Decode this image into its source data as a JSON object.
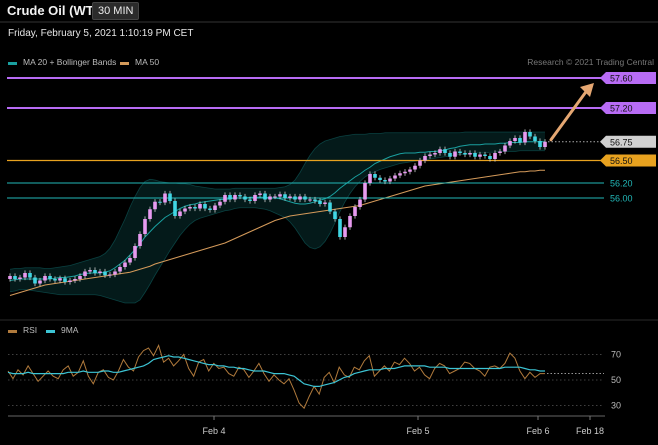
{
  "header": {
    "instrument": "Crude Oil (WTI)",
    "timeframe": "30 MIN",
    "datetime": "Friday, February 5, 2021 1:10:19 PM CET",
    "copyright": "Research © 2021 Trading Central"
  },
  "colors": {
    "background": "#000000",
    "resistance": "#b86cf5",
    "target_arrow": "#e5a772",
    "pivot": "#e8a21f",
    "support": "#22b8b8",
    "last_price_tag": "#d0d0d0",
    "ma20_bollinger": "#1aa0a0",
    "ma50": "#d49a5a",
    "rsi": "#b07a3c",
    "rsi_9ma": "#3cc4d4",
    "bull_candle": "#e89af0",
    "bear_candle": "#41d6e3"
  },
  "chart_data": [
    {
      "type": "candlestick",
      "title": "Crude Oil (WTI)",
      "timeframe": "30 MIN",
      "legend": [
        "MA 20 + Bollinger Bands",
        "MA 50"
      ],
      "legend_position": "top-left",
      "x_ticks": [
        "Feb 4",
        "Feb 5",
        "Feb 6",
        "Feb 18"
      ],
      "last_price": 56.75,
      "levels": [
        {
          "value": 57.6,
          "label": "57.60",
          "role": "resistance"
        },
        {
          "value": 57.2,
          "label": "57.20",
          "role": "resistance"
        },
        {
          "value": 56.75,
          "label": "56.75",
          "role": "last"
        },
        {
          "value": 56.5,
          "label": "56.50",
          "role": "pivot"
        },
        {
          "value": 56.2,
          "label": "56.20",
          "role": "support"
        },
        {
          "value": 56.0,
          "label": "56.00",
          "role": "support"
        }
      ],
      "target_arrow": {
        "from": 56.75,
        "to": 57.6
      },
      "close": [
        54.96,
        54.92,
        54.94,
        55.0,
        54.94,
        54.86,
        54.9,
        54.96,
        54.92,
        54.9,
        54.93,
        54.88,
        54.9,
        54.92,
        54.96,
        55.02,
        55.04,
        55.0,
        55.02,
        54.97,
        54.98,
        55.02,
        55.08,
        55.14,
        55.2,
        55.36,
        55.52,
        55.72,
        55.85,
        55.95,
        55.94,
        56.06,
        55.96,
        55.76,
        55.82,
        55.86,
        55.88,
        55.86,
        55.92,
        55.86,
        55.84,
        55.9,
        55.95,
        56.04,
        55.98,
        56.04,
        56.02,
        55.98,
        55.96,
        56.04,
        56.06,
        55.98,
        56.02,
        56.02,
        56.05,
        56.0,
        56.02,
        55.98,
        56.02,
        55.98,
        55.98,
        55.96,
        55.92,
        55.94,
        55.82,
        55.72,
        55.48,
        55.61,
        55.76,
        55.88,
        55.98,
        56.2,
        56.32,
        56.27,
        56.24,
        56.22,
        56.26,
        56.3,
        56.33,
        56.35,
        56.38,
        56.43,
        56.5,
        56.56,
        56.58,
        56.6,
        56.65,
        56.6,
        56.55,
        56.62,
        56.6,
        56.58,
        56.6,
        56.55,
        56.58,
        56.56,
        56.52,
        56.6,
        56.62,
        56.7,
        56.76,
        56.8,
        56.74,
        56.88,
        56.82,
        56.76,
        56.68,
        56.75
      ],
      "ma20": [
        54.9,
        54.91,
        54.92,
        54.92,
        54.92,
        54.92,
        54.92,
        54.92,
        54.92,
        54.93,
        54.94,
        54.94,
        54.95,
        54.96,
        54.98,
        54.99,
        55.0,
        55.0,
        55.0,
        55.01,
        55.03,
        55.07,
        55.12,
        55.17,
        55.24,
        55.31,
        55.39,
        55.48,
        55.55,
        55.62,
        55.68,
        55.74,
        55.78,
        55.82,
        55.86,
        55.89,
        55.91,
        55.92,
        55.94,
        55.95,
        55.96,
        55.97,
        55.98,
        55.98,
        55.99,
        56.0,
        56.0,
        56.0,
        56.01,
        56.01,
        56.01,
        56.01,
        56.0,
        56.0,
        55.99,
        55.97,
        55.95,
        55.93,
        55.92,
        55.92,
        55.93,
        55.95,
        55.97,
        55.99,
        56.02,
        56.07,
        56.13,
        56.18,
        56.23,
        56.28,
        56.32,
        56.37,
        56.41,
        56.46,
        56.49,
        56.52,
        56.55,
        56.57,
        56.59,
        56.6,
        56.6,
        56.6,
        56.61,
        56.61,
        56.62,
        56.62,
        56.63,
        56.64,
        56.66,
        56.67,
        56.69,
        56.7,
        56.71,
        56.71,
        56.71,
        56.72,
        56.72,
        56.72,
        56.73,
        56.73,
        56.74,
        56.74,
        56.74,
        56.75,
        56.75,
        56.75,
        56.75,
        56.75
      ],
      "bollinger_upper": [
        55.05,
        55.06,
        55.06,
        55.07,
        55.07,
        55.07,
        55.07,
        55.06,
        55.06,
        55.07,
        55.08,
        55.09,
        55.1,
        55.12,
        55.14,
        55.16,
        55.18,
        55.2,
        55.22,
        55.26,
        55.33,
        55.44,
        55.58,
        55.72,
        55.88,
        56.02,
        56.14,
        56.22,
        56.25,
        56.24,
        56.22,
        56.21,
        56.2,
        56.2,
        56.19,
        56.19,
        56.18,
        56.16,
        56.15,
        56.14,
        56.13,
        56.12,
        56.12,
        56.12,
        56.12,
        56.13,
        56.13,
        56.13,
        56.13,
        56.13,
        56.13,
        56.13,
        56.13,
        56.13,
        56.14,
        56.15,
        56.18,
        56.24,
        56.34,
        56.46,
        56.57,
        56.66,
        56.72,
        56.76,
        56.78,
        56.8,
        56.82,
        56.83,
        56.84,
        56.85,
        56.85,
        56.85,
        56.86,
        56.86,
        56.86,
        56.87,
        56.87,
        56.87,
        56.87,
        56.87,
        56.87,
        56.87,
        56.87,
        56.87,
        56.87,
        56.87,
        56.87,
        56.87,
        56.87,
        56.87,
        56.87,
        56.88,
        56.88,
        56.88,
        56.88,
        56.88,
        56.88,
        56.88,
        56.88,
        56.88,
        56.88,
        56.88,
        56.88,
        56.88,
        56.88,
        56.88,
        56.88,
        56.88
      ],
      "bollinger_lower": [
        54.75,
        54.76,
        54.78,
        54.78,
        54.77,
        54.76,
        54.75,
        54.74,
        54.73,
        54.72,
        54.71,
        54.71,
        54.71,
        54.71,
        54.71,
        54.71,
        54.71,
        54.71,
        54.7,
        54.68,
        54.66,
        54.64,
        54.62,
        54.6,
        54.6,
        54.6,
        54.64,
        54.74,
        54.85,
        54.97,
        55.08,
        55.19,
        55.3,
        55.4,
        55.5,
        55.58,
        55.65,
        55.7,
        55.73,
        55.75,
        55.77,
        55.79,
        55.81,
        55.83,
        55.84,
        55.86,
        55.87,
        55.87,
        55.87,
        55.87,
        55.86,
        55.85,
        55.83,
        55.8,
        55.77,
        55.74,
        55.68,
        55.6,
        55.5,
        55.4,
        55.34,
        55.32,
        55.35,
        55.42,
        55.53,
        55.67,
        55.82,
        55.95,
        56.06,
        56.15,
        56.22,
        56.28,
        56.32,
        56.35,
        56.38,
        56.4,
        56.42,
        56.44,
        56.46,
        56.47,
        56.48,
        56.49,
        56.5,
        56.51,
        56.52,
        56.53,
        56.54,
        56.55,
        56.56,
        56.57,
        56.58,
        56.58,
        56.59,
        56.6,
        56.6,
        56.6,
        56.61,
        56.61,
        56.62,
        56.62,
        56.62,
        56.62,
        56.63,
        56.63,
        56.63,
        56.63,
        56.63,
        56.63
      ],
      "ma50": [
        54.7,
        54.72,
        54.74,
        54.76,
        54.78,
        54.8,
        54.82,
        54.84,
        54.85,
        54.86,
        54.87,
        54.88,
        54.89,
        54.9,
        54.91,
        54.92,
        54.93,
        54.94,
        54.95,
        54.96,
        54.97,
        54.98,
        54.99,
        55.0,
        55.01,
        55.03,
        55.05,
        55.07,
        55.09,
        55.12,
        55.14,
        55.16,
        55.18,
        55.2,
        55.22,
        55.24,
        55.26,
        55.28,
        55.3,
        55.32,
        55.34,
        55.36,
        55.38,
        55.4,
        55.43,
        55.46,
        55.49,
        55.52,
        55.55,
        55.58,
        55.61,
        55.64,
        55.67,
        55.7,
        55.72,
        55.74,
        55.76,
        55.77,
        55.78,
        55.79,
        55.8,
        55.81,
        55.82,
        55.83,
        55.84,
        55.85,
        55.86,
        55.87,
        55.88,
        55.89,
        55.9,
        55.92,
        55.94,
        55.96,
        55.98,
        56.0,
        56.02,
        56.04,
        56.06,
        56.08,
        56.1,
        56.12,
        56.14,
        56.16,
        56.17,
        56.18,
        56.19,
        56.2,
        56.21,
        56.22,
        56.23,
        56.24,
        56.25,
        56.26,
        56.27,
        56.28,
        56.29,
        56.3,
        56.31,
        56.32,
        56.33,
        56.34,
        56.35,
        56.35,
        56.36,
        56.36,
        56.37,
        56.37
      ]
    },
    {
      "type": "line",
      "legend": [
        "RSI",
        "9MA"
      ],
      "legend_position": "top-left",
      "y_ticks": [
        70,
        50,
        30
      ],
      "ylim": [
        20,
        80
      ],
      "current_level": 55,
      "series": [
        {
          "name": "RSI",
          "values": [
            57,
            51,
            58,
            54,
            61,
            55,
            49,
            53,
            57,
            53,
            51,
            58,
            61,
            53,
            56,
            65,
            53,
            47,
            56,
            58,
            52,
            50,
            57,
            66,
            60,
            57,
            68,
            73,
            75,
            69,
            77,
            64,
            67,
            61,
            65,
            70,
            59,
            53,
            64,
            66,
            57,
            63,
            59,
            60,
            55,
            53,
            60,
            58,
            52,
            57,
            63,
            55,
            49,
            54,
            50,
            47,
            51,
            42,
            32,
            28,
            37,
            45,
            39,
            52,
            56,
            48,
            60,
            54,
            52,
            60,
            58,
            65,
            69,
            53,
            57,
            61,
            57,
            64,
            62,
            67,
            63,
            57,
            60,
            54,
            51,
            59,
            63,
            61,
            55,
            57,
            59,
            64,
            63,
            59,
            57,
            53,
            60,
            61,
            59,
            63,
            71,
            67,
            57,
            51,
            56,
            52,
            55,
            55
          ]
        },
        {
          "name": "9MA",
          "values": [
            56,
            55,
            55,
            55,
            56,
            55,
            55,
            55,
            55,
            55,
            55,
            55,
            56,
            56,
            56,
            57,
            56,
            56,
            56,
            57,
            57,
            56,
            56,
            57,
            58,
            59,
            60,
            61,
            63,
            66,
            67,
            68,
            69,
            68,
            68,
            67,
            66,
            65,
            64,
            63,
            62,
            62,
            61,
            61,
            60,
            60,
            59,
            59,
            58,
            57,
            57,
            57,
            56,
            55,
            55,
            55,
            54,
            53,
            50,
            47,
            46,
            45,
            45,
            46,
            47,
            48,
            50,
            52,
            53,
            55,
            56,
            57,
            58,
            58,
            58,
            59,
            59,
            59,
            60,
            61,
            61,
            61,
            61,
            61,
            60,
            60,
            60,
            60,
            59,
            59,
            59,
            59,
            59,
            59,
            59,
            59,
            59,
            59,
            59,
            60,
            60,
            60,
            60,
            59,
            58,
            58,
            57,
            57
          ]
        }
      ]
    }
  ]
}
